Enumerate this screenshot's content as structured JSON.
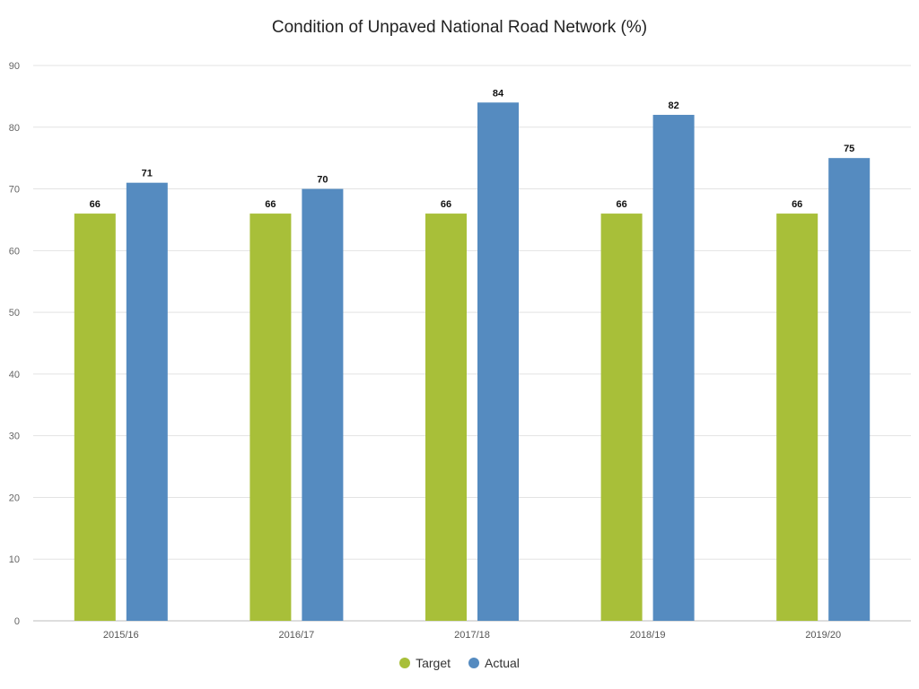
{
  "chart_data": {
    "type": "bar",
    "title": "Condition of Unpaved National Road Network (%)",
    "xlabel": "",
    "ylabel": "",
    "categories": [
      "2015/16",
      "2016/17",
      "2017/18",
      "2018/19",
      "2019/20"
    ],
    "ylim": [
      0,
      90
    ],
    "yticks": [
      0,
      10,
      20,
      30,
      40,
      50,
      60,
      70,
      80,
      90
    ],
    "grid": true,
    "legend": "bottom",
    "data_labels": true,
    "series": [
      {
        "name": "Target",
        "color": "#a8bf39",
        "values": [
          66,
          66,
          66,
          66,
          66
        ]
      },
      {
        "name": "Actual",
        "color": "#558bc0",
        "values": [
          71,
          70,
          84,
          82,
          75
        ]
      }
    ]
  }
}
